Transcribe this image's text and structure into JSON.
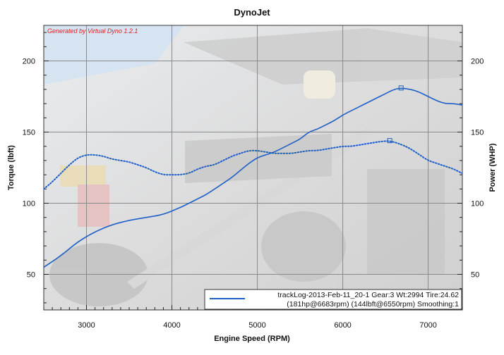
{
  "chart_data": {
    "type": "line",
    "title": "DynoJet",
    "watermark": "Generated by Virtual Dyno 1.2.1",
    "xlabel": "Engine Speed (RPM)",
    "ylabel": "Torque (lbft)",
    "y2label": "Power (WHP)",
    "xlim": [
      2500,
      7400
    ],
    "ylim": [
      25,
      225
    ],
    "y2lim": [
      25,
      225
    ],
    "x_ticks": [
      3000,
      4000,
      5000,
      6000,
      7000
    ],
    "y_ticks": [
      50,
      100,
      150,
      200
    ],
    "y2_ticks": [
      50,
      100,
      150,
      200
    ],
    "grid": true,
    "legend_position": "bottom-right",
    "legend": {
      "line1": "trackLog-2013-Feb-11_20-1 Gear:3 Wt:2994 Tire:24.62",
      "line2": "(181hp@6683rpm) (144lbft@6550rpm) Smoothing:1"
    },
    "colors": {
      "series": "#1f5fc8",
      "watermark": "#e02020",
      "plot_bg": "#eeeeee"
    },
    "series": [
      {
        "role": "power",
        "style": "solid",
        "marker_x": 6683,
        "x": [
          2500,
          2700,
          2900,
          3100,
          3300,
          3500,
          3700,
          3900,
          4100,
          4200,
          4300,
          4400,
          4500,
          4600,
          4700,
          4800,
          4900,
          5000,
          5100,
          5200,
          5300,
          5400,
          5500,
          5600,
          5700,
          5800,
          5900,
          6000,
          6100,
          6200,
          6300,
          6400,
          6500,
          6600,
          6683,
          6800,
          6900,
          7000,
          7100,
          7200,
          7300,
          7400
        ],
        "values": [
          55,
          63,
          73,
          80,
          85,
          88,
          90,
          92,
          97,
          100,
          103,
          106,
          110,
          114,
          118,
          123,
          128,
          132,
          134,
          136,
          139,
          142,
          145,
          150,
          152,
          155,
          158,
          162,
          165,
          168,
          171,
          174,
          177,
          180,
          181,
          180,
          178,
          175,
          172,
          170,
          170,
          169
        ]
      },
      {
        "role": "torque",
        "style": "dotted",
        "marker_x": 6550,
        "x": [
          2500,
          2600,
          2700,
          2800,
          2900,
          3000,
          3100,
          3200,
          3300,
          3400,
          3500,
          3600,
          3700,
          3800,
          3900,
          4000,
          4100,
          4200,
          4300,
          4400,
          4500,
          4600,
          4700,
          4800,
          4900,
          5000,
          5100,
          5200,
          5300,
          5400,
          5500,
          5600,
          5700,
          5800,
          5900,
          6000,
          6100,
          6200,
          6300,
          6400,
          6550,
          6700,
          6800,
          6900,
          7000,
          7100,
          7200,
          7300,
          7400
        ],
        "values": [
          110,
          115,
          121,
          127,
          132,
          134,
          134,
          133,
          131,
          130,
          129,
          127,
          125,
          122,
          120,
          120,
          120,
          121,
          124,
          126,
          127,
          130,
          133,
          135,
          137,
          137,
          136,
          135,
          135,
          135,
          136,
          137,
          137,
          138,
          139,
          140,
          140,
          141,
          142,
          143,
          144,
          141,
          138,
          134,
          130,
          128,
          126,
          124,
          121
        ]
      }
    ]
  }
}
